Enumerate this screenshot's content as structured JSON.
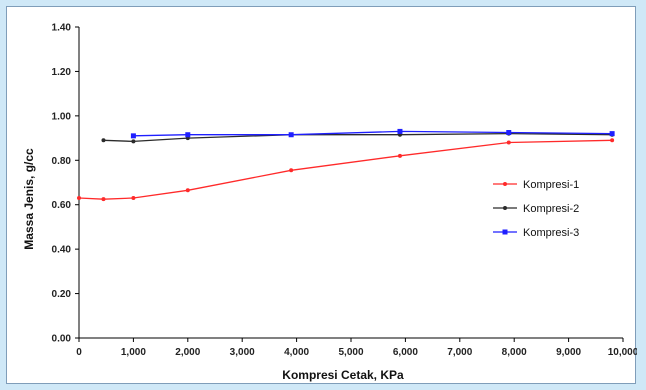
{
  "chart_data": {
    "type": "line",
    "title": "",
    "xlabel": "Kompresi Cetak, KPa",
    "ylabel": "Massa Jenis, g/cc",
    "xlim": [
      0,
      10000
    ],
    "ylim": [
      0,
      1.4
    ],
    "x_tick_labels": [
      "0",
      "1,000",
      "2,000",
      "3,000",
      "4,000",
      "5,000",
      "6,000",
      "7,000",
      "8,000",
      "9,000",
      "10,000"
    ],
    "y_tick_labels": [
      "0.00",
      "0.20",
      "0.40",
      "0.60",
      "0.80",
      "1.00",
      "1.20",
      "1.40"
    ],
    "grid": false,
    "legend_position": "right",
    "series": [
      {
        "name": "Kompresi-1",
        "color": "#ff2a2a",
        "marker": "dot",
        "x": [
          0,
          450,
          1000,
          2000,
          3900,
          5900,
          7900,
          9800
        ],
        "y": [
          0.63,
          0.625,
          0.63,
          0.665,
          0.755,
          0.82,
          0.88,
          0.89
        ]
      },
      {
        "name": "Kompresi-2",
        "color": "#2b2b2b",
        "marker": "dot",
        "x": [
          450,
          1000,
          2000,
          3900,
          5900,
          7900,
          9800
        ],
        "y": [
          0.89,
          0.885,
          0.9,
          0.915,
          0.915,
          0.92,
          0.915
        ]
      },
      {
        "name": "Kompresi-3",
        "color": "#1f1fff",
        "marker": "square",
        "x": [
          1000,
          2000,
          3900,
          5900,
          7900,
          9800
        ],
        "y": [
          0.91,
          0.915,
          0.915,
          0.93,
          0.925,
          0.92
        ]
      }
    ]
  }
}
